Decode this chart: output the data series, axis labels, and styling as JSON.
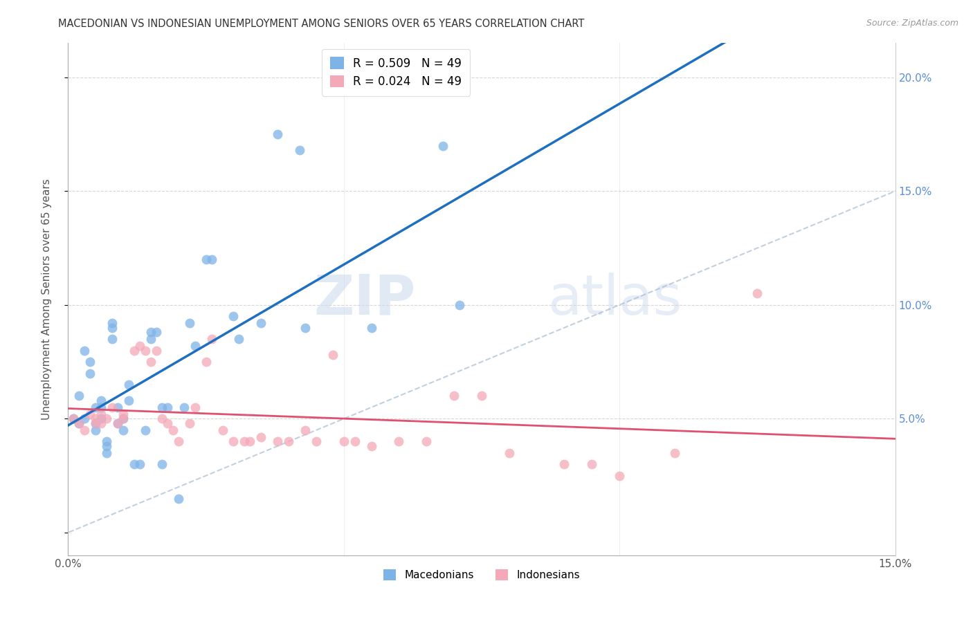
{
  "title": "MACEDONIAN VS INDONESIAN UNEMPLOYMENT AMONG SENIORS OVER 65 YEARS CORRELATION CHART",
  "source": "Source: ZipAtlas.com",
  "ylabel": "Unemployment Among Seniors over 65 years",
  "xlabel_macedonians": "Macedonians",
  "xlabel_indonesians": "Indonesians",
  "r_macedonian": 0.509,
  "n_macedonian": 49,
  "r_indonesian": 0.024,
  "n_indonesian": 49,
  "x_min": 0.0,
  "x_max": 0.15,
  "y_min": -0.01,
  "y_max": 0.215,
  "y_ticks": [
    0.0,
    0.05,
    0.1,
    0.15,
    0.2
  ],
  "y_tick_labels_right": [
    "",
    "5.0%",
    "10.0%",
    "15.0%",
    "20.0%"
  ],
  "color_macedonian": "#7EB3E8",
  "color_indonesian": "#F4A8B8",
  "line_color_macedonian": "#1E6FBF",
  "line_color_indonesian": "#E05070",
  "line_color_diagonal": "#A0B8CC",
  "right_axis_color": "#5B8DD9",
  "watermark_zip": "ZIP",
  "watermark_atlas": "atlas",
  "macedonian_x": [
    0.001,
    0.002,
    0.002,
    0.003,
    0.003,
    0.004,
    0.004,
    0.005,
    0.005,
    0.005,
    0.006,
    0.006,
    0.006,
    0.007,
    0.007,
    0.007,
    0.008,
    0.008,
    0.008,
    0.009,
    0.009,
    0.01,
    0.01,
    0.011,
    0.011,
    0.012,
    0.013,
    0.014,
    0.015,
    0.015,
    0.016,
    0.017,
    0.017,
    0.018,
    0.02,
    0.021,
    0.022,
    0.023,
    0.025,
    0.026,
    0.03,
    0.031,
    0.035,
    0.038,
    0.042,
    0.043,
    0.055,
    0.068,
    0.071
  ],
  "macedonian_y": [
    0.05,
    0.048,
    0.06,
    0.05,
    0.08,
    0.07,
    0.075,
    0.045,
    0.055,
    0.048,
    0.055,
    0.058,
    0.05,
    0.04,
    0.035,
    0.038,
    0.09,
    0.092,
    0.085,
    0.055,
    0.048,
    0.045,
    0.05,
    0.058,
    0.065,
    0.03,
    0.03,
    0.045,
    0.085,
    0.088,
    0.088,
    0.055,
    0.03,
    0.055,
    0.015,
    0.055,
    0.092,
    0.082,
    0.12,
    0.12,
    0.095,
    0.085,
    0.092,
    0.175,
    0.168,
    0.09,
    0.09,
    0.17,
    0.1
  ],
  "indonesian_x": [
    0.001,
    0.002,
    0.003,
    0.004,
    0.005,
    0.005,
    0.006,
    0.006,
    0.007,
    0.008,
    0.009,
    0.01,
    0.01,
    0.012,
    0.013,
    0.014,
    0.015,
    0.016,
    0.017,
    0.018,
    0.019,
    0.02,
    0.022,
    0.023,
    0.025,
    0.026,
    0.028,
    0.03,
    0.032,
    0.033,
    0.035,
    0.038,
    0.04,
    0.043,
    0.045,
    0.048,
    0.05,
    0.052,
    0.055,
    0.06,
    0.065,
    0.07,
    0.075,
    0.08,
    0.09,
    0.095,
    0.1,
    0.11,
    0.125
  ],
  "indonesian_y": [
    0.05,
    0.048,
    0.045,
    0.052,
    0.048,
    0.05,
    0.048,
    0.052,
    0.05,
    0.055,
    0.048,
    0.05,
    0.052,
    0.08,
    0.082,
    0.08,
    0.075,
    0.08,
    0.05,
    0.048,
    0.045,
    0.04,
    0.048,
    0.055,
    0.075,
    0.085,
    0.045,
    0.04,
    0.04,
    0.04,
    0.042,
    0.04,
    0.04,
    0.045,
    0.04,
    0.078,
    0.04,
    0.04,
    0.038,
    0.04,
    0.04,
    0.06,
    0.06,
    0.035,
    0.03,
    0.03,
    0.025,
    0.035,
    0.105
  ]
}
